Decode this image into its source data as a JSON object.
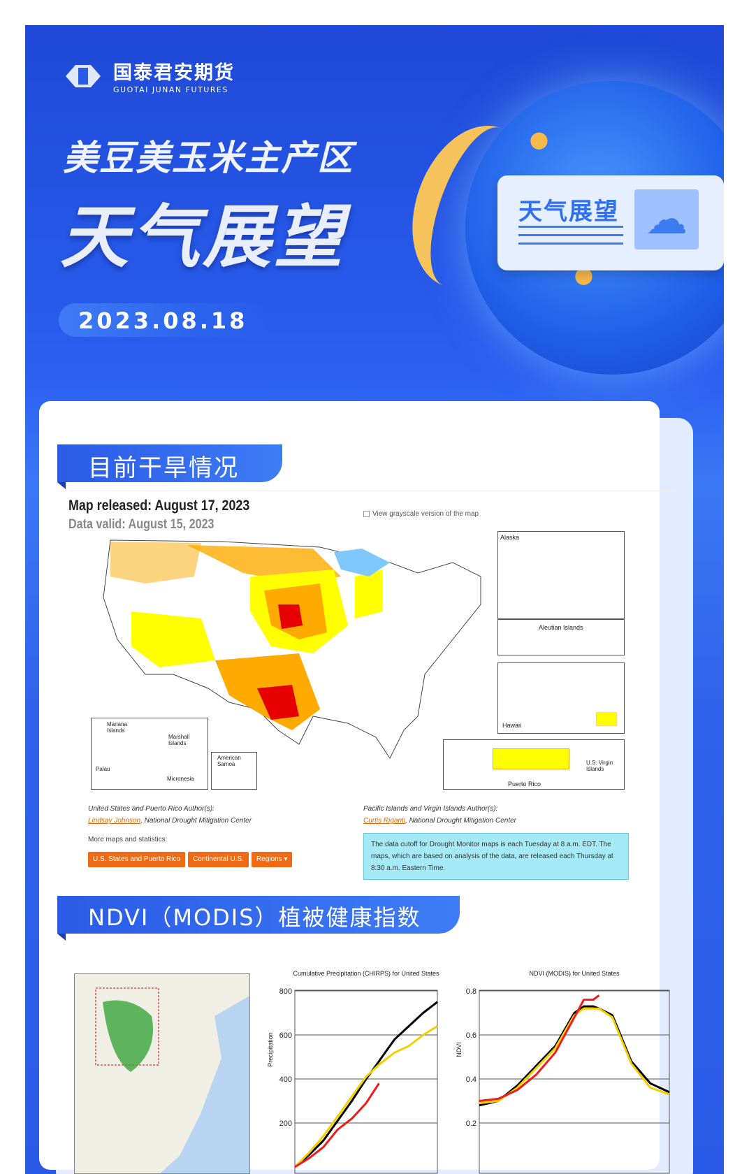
{
  "brand": {
    "name_cn": "国泰君安期货",
    "name_en": "GUOTAI JUNAN FUTURES"
  },
  "hero": {
    "subtitle": "美豆美玉米主产区",
    "title": "天气展望",
    "date": "2023.08.18",
    "badge": "天气展望"
  },
  "section1": {
    "title": "目前干旱情况",
    "map_released": "Map released: August 17, 2023",
    "data_valid": "Data valid: August 15, 2023",
    "grayscale_label": "View grayscale version of the map",
    "insets": {
      "alaska": "Alaska",
      "aleutian": "Aleutian Islands",
      "hawaii": "Hawaii",
      "puerto_rico": "Puerto Rico",
      "virgin": "U.S. Virgin Islands",
      "mariana": "Mariana Islands",
      "marshall": "Marshall Islands",
      "palau": "Palau",
      "micronesia": "Micronesia",
      "samoa": "American Samoa"
    },
    "us_author_heading": "United States and Puerto Rico Author(s):",
    "us_author_name": "Lindsay Johnson",
    "us_author_org": ", National Drought Mitigation Center",
    "pi_author_heading": "Pacific Islands and Virgin Islands Author(s):",
    "pi_author_name": "Curtis Riganti",
    "pi_author_org": ", National Drought Mitigation Center",
    "more_label": "More maps and statistics:",
    "buttons": [
      "U.S. States and Puerto Rico",
      "Continental U.S.",
      "Regions ▾"
    ],
    "note": "The data cutoff for Drought Monitor maps is each Tuesday at 8 a.m. EDT. The maps, which are based on analysis of the data, are released each Thursday at 8:30 a.m. Eastern Time.",
    "colors": {
      "D0": "#ffff00",
      "D1": "#fcd37f",
      "D2": "#ffaa00",
      "D3": "#e60000",
      "D4": "#730000"
    }
  },
  "section2": {
    "title": "NDVI（MODIS）植被健康指数"
  },
  "chart_data": [
    {
      "type": "line",
      "title": "Cumulative Precipitation (CHIRPS) for United States",
      "ylabel": "Precipitation",
      "ylim": [
        0,
        800
      ],
      "yticks": [
        200,
        400,
        600,
        800
      ],
      "grid": true,
      "x": [
        0,
        0.1,
        0.2,
        0.3,
        0.4,
        0.5,
        0.59,
        0.6,
        0.7,
        0.8,
        0.9,
        1.0
      ],
      "series": [
        {
          "color": "#000000",
          "values": [
            0,
            55,
            120,
            210,
            300,
            400,
            480,
            490,
            580,
            640,
            700,
            750
          ]
        },
        {
          "color": "#f2d000",
          "values": [
            0,
            65,
            140,
            230,
            320,
            410,
            465,
            470,
            520,
            550,
            600,
            640
          ]
        },
        {
          "color": "#ee1c1c",
          "values": [
            0,
            40,
            90,
            170,
            220,
            290,
            380,
            null,
            null,
            null,
            null,
            null
          ]
        }
      ]
    },
    {
      "type": "line",
      "title": "NDVI (MODIS) for United States",
      "ylabel": "NDVI",
      "ylim": [
        0,
        0.8
      ],
      "yticks": [
        0.2,
        0.4,
        0.6,
        0.8
      ],
      "grid": true,
      "x": [
        0,
        0.1,
        0.2,
        0.3,
        0.4,
        0.5,
        0.55,
        0.6,
        0.63,
        0.7,
        0.8,
        0.9,
        1.0
      ],
      "series": [
        {
          "color": "#000000",
          "values": [
            0.28,
            0.3,
            0.37,
            0.46,
            0.55,
            0.7,
            0.73,
            0.73,
            0.72,
            0.69,
            0.48,
            0.38,
            0.34
          ]
        },
        {
          "color": "#f2d000",
          "values": [
            0.29,
            0.3,
            0.36,
            0.45,
            0.54,
            0.69,
            0.72,
            0.72,
            0.72,
            0.68,
            0.47,
            0.36,
            0.33
          ]
        },
        {
          "color": "#ee1c1c",
          "values": [
            0.3,
            0.31,
            0.35,
            0.42,
            0.52,
            0.68,
            0.76,
            0.76,
            0.78,
            null,
            null,
            null,
            null
          ]
        }
      ]
    }
  ]
}
